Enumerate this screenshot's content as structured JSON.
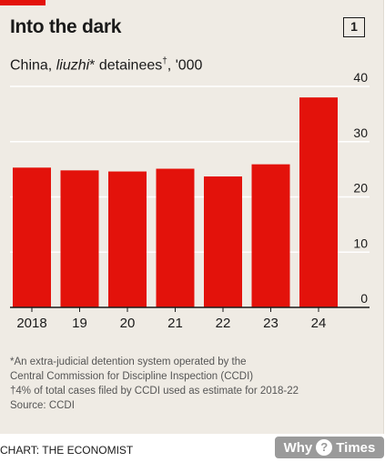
{
  "header": {
    "title": "Into the dark",
    "subtitle_pre": "China, ",
    "subtitle_em": "liuzhi",
    "subtitle_mid": "* detainees",
    "subtitle_dagger": "†",
    "subtitle_post": ", '000",
    "page_number": "1"
  },
  "notes": [
    "*An extra-judicial detention system operated by the",
    "Central Commission for Discipline Inspection (CCDI)",
    "†4% of total cases filed by CCDI used as estimate for 2018-22",
    "Source: CCDI"
  ],
  "credit": "CHART: THE ECONOMIST",
  "watermark": {
    "left": "Why",
    "mid": "?",
    "right": "Times"
  },
  "colors": {
    "bar": "#e3120b",
    "background": "#efebe4",
    "grid": "#ffffff",
    "accent": "#e3120b"
  },
  "chart_data": {
    "type": "bar",
    "categories": [
      "2018",
      "19",
      "20",
      "21",
      "22",
      "23",
      "24"
    ],
    "values": [
      25.3,
      24.8,
      24.6,
      25.1,
      23.7,
      25.9,
      38.0
    ],
    "ylim": [
      0,
      40
    ],
    "yticks": [
      "0",
      "10",
      "20",
      "30",
      "40"
    ],
    "y_axis_side": "right",
    "grid": true,
    "xlabel": "",
    "ylabel": ""
  }
}
